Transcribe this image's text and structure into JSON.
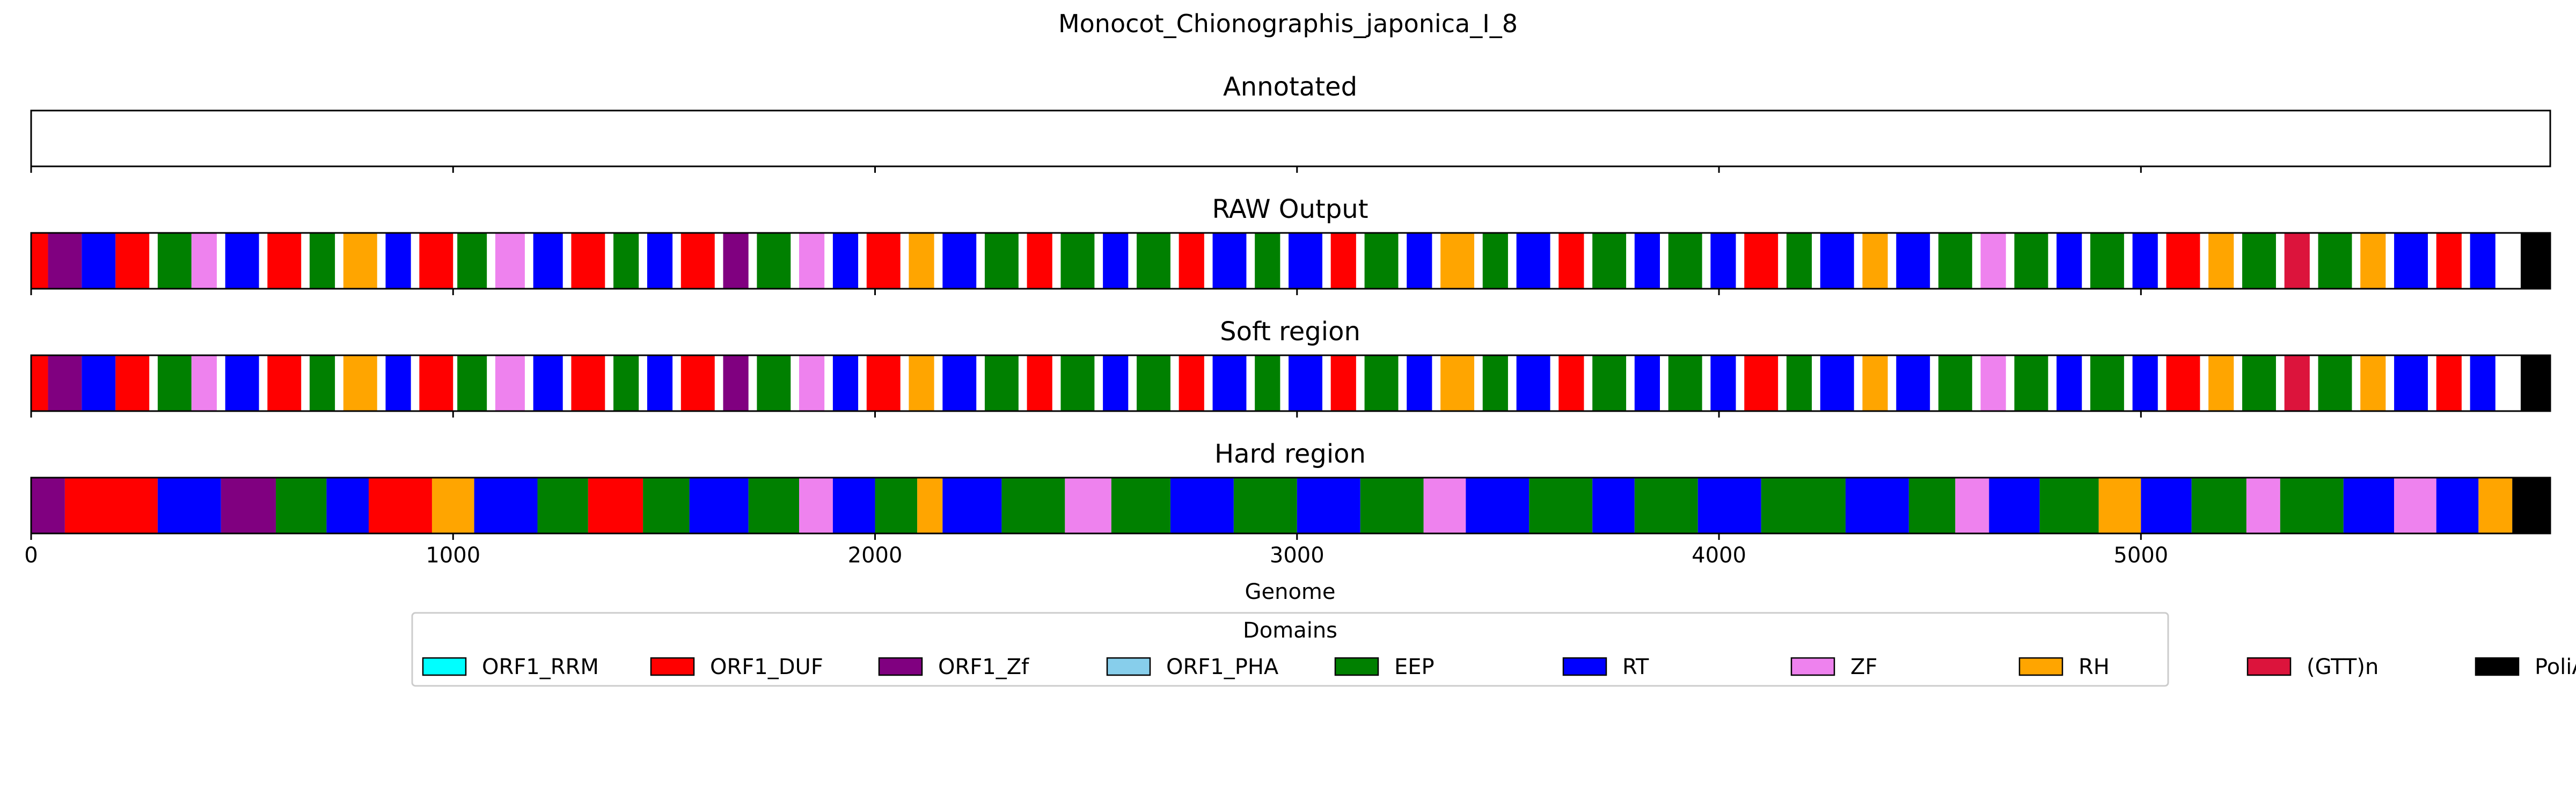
{
  "chart_data": {
    "type": "genome_track",
    "title": "Monocot_Chionographis_japonica_I_8",
    "xlabel": "Genome",
    "xlim": [
      0,
      5970
    ],
    "xticks": [
      0,
      1000,
      2000,
      3000,
      4000,
      5000
    ],
    "xtick_labels": [
      "0",
      "1000",
      "2000",
      "3000",
      "4000",
      "5000"
    ],
    "legend": {
      "title": "Domains",
      "placement": "below-center",
      "entries": [
        {
          "name": "ORF1_RRM",
          "color": "#00ffff"
        },
        {
          "name": "ORF1_DUF",
          "color": "#ff0000"
        },
        {
          "name": "ORF1_Zf",
          "color": "#800080"
        },
        {
          "name": "ORF1_PHA",
          "color": "#87ceeb"
        },
        {
          "name": "EEP",
          "color": "#008000"
        },
        {
          "name": "RT",
          "color": "#0000ff"
        },
        {
          "name": "ZF",
          "color": "#ee82ee"
        },
        {
          "name": "RH",
          "color": "#ffa500"
        },
        {
          "name": "(GTT)n",
          "color": "#dc143c"
        },
        {
          "name": "PoliA",
          "color": "#000000"
        }
      ]
    },
    "tracks": [
      {
        "name": "Annotated",
        "segments": []
      },
      {
        "name": "RAW Output",
        "segments": [
          [
            0,
            40,
            "ORF1_DUF"
          ],
          [
            40,
            120,
            "ORF1_Zf"
          ],
          [
            120,
            200,
            "RT"
          ],
          [
            200,
            280,
            "ORF1_DUF"
          ],
          [
            300,
            380,
            "EEP"
          ],
          [
            380,
            440,
            "ZF"
          ],
          [
            460,
            540,
            "RT"
          ],
          [
            560,
            640,
            "ORF1_DUF"
          ],
          [
            660,
            720,
            "EEP"
          ],
          [
            740,
            820,
            "RH"
          ],
          [
            840,
            900,
            "RT"
          ],
          [
            920,
            1000,
            "ORF1_DUF"
          ],
          [
            1010,
            1080,
            "EEP"
          ],
          [
            1100,
            1170,
            "ZF"
          ],
          [
            1190,
            1260,
            "RT"
          ],
          [
            1280,
            1360,
            "ORF1_DUF"
          ],
          [
            1380,
            1440,
            "EEP"
          ],
          [
            1460,
            1520,
            "RT"
          ],
          [
            1540,
            1620,
            "ORF1_DUF"
          ],
          [
            1640,
            1700,
            "ORF1_Zf"
          ],
          [
            1720,
            1800,
            "EEP"
          ],
          [
            1820,
            1880,
            "ZF"
          ],
          [
            1900,
            1960,
            "RT"
          ],
          [
            1980,
            2060,
            "ORF1_DUF"
          ],
          [
            2080,
            2140,
            "RH"
          ],
          [
            2160,
            2240,
            "RT"
          ],
          [
            2260,
            2340,
            "EEP"
          ],
          [
            2360,
            2420,
            "ORF1_DUF"
          ],
          [
            2440,
            2520,
            "EEP"
          ],
          [
            2540,
            2600,
            "RT"
          ],
          [
            2620,
            2700,
            "EEP"
          ],
          [
            2720,
            2780,
            "ORF1_DUF"
          ],
          [
            2800,
            2880,
            "RT"
          ],
          [
            2900,
            2960,
            "EEP"
          ],
          [
            2980,
            3060,
            "RT"
          ],
          [
            3080,
            3140,
            "ORF1_DUF"
          ],
          [
            3160,
            3240,
            "EEP"
          ],
          [
            3260,
            3320,
            "RT"
          ],
          [
            3340,
            3420,
            "RH"
          ],
          [
            3440,
            3500,
            "EEP"
          ],
          [
            3520,
            3600,
            "RT"
          ],
          [
            3620,
            3680,
            "ORF1_DUF"
          ],
          [
            3700,
            3780,
            "EEP"
          ],
          [
            3800,
            3860,
            "RT"
          ],
          [
            3880,
            3960,
            "EEP"
          ],
          [
            3980,
            4040,
            "RT"
          ],
          [
            4060,
            4140,
            "ORF1_DUF"
          ],
          [
            4160,
            4220,
            "EEP"
          ],
          [
            4240,
            4320,
            "RT"
          ],
          [
            4340,
            4400,
            "RH"
          ],
          [
            4420,
            4500,
            "RT"
          ],
          [
            4520,
            4600,
            "EEP"
          ],
          [
            4620,
            4680,
            "ZF"
          ],
          [
            4700,
            4780,
            "EEP"
          ],
          [
            4800,
            4860,
            "RT"
          ],
          [
            4880,
            4960,
            "EEP"
          ],
          [
            4980,
            5040,
            "RT"
          ],
          [
            5060,
            5140,
            "ORF1_DUF"
          ],
          [
            5160,
            5220,
            "RH"
          ],
          [
            5240,
            5320,
            "EEP"
          ],
          [
            5340,
            5400,
            "(GTT)n"
          ],
          [
            5420,
            5500,
            "EEP"
          ],
          [
            5520,
            5580,
            "RH"
          ],
          [
            5600,
            5680,
            "RT"
          ],
          [
            5700,
            5760,
            "ORF1_DUF"
          ],
          [
            5780,
            5840,
            "RT"
          ],
          [
            5900,
            5970,
            "PoliA"
          ]
        ]
      },
      {
        "name": "Soft region",
        "segments": [
          [
            0,
            40,
            "ORF1_DUF"
          ],
          [
            40,
            120,
            "ORF1_Zf"
          ],
          [
            120,
            200,
            "RT"
          ],
          [
            200,
            280,
            "ORF1_DUF"
          ],
          [
            300,
            380,
            "EEP"
          ],
          [
            380,
            440,
            "ZF"
          ],
          [
            460,
            540,
            "RT"
          ],
          [
            560,
            640,
            "ORF1_DUF"
          ],
          [
            660,
            720,
            "EEP"
          ],
          [
            740,
            820,
            "RH"
          ],
          [
            840,
            900,
            "RT"
          ],
          [
            920,
            1000,
            "ORF1_DUF"
          ],
          [
            1010,
            1080,
            "EEP"
          ],
          [
            1100,
            1170,
            "ZF"
          ],
          [
            1190,
            1260,
            "RT"
          ],
          [
            1280,
            1360,
            "ORF1_DUF"
          ],
          [
            1380,
            1440,
            "EEP"
          ],
          [
            1460,
            1520,
            "RT"
          ],
          [
            1540,
            1620,
            "ORF1_DUF"
          ],
          [
            1640,
            1700,
            "ORF1_Zf"
          ],
          [
            1720,
            1800,
            "EEP"
          ],
          [
            1820,
            1880,
            "ZF"
          ],
          [
            1900,
            1960,
            "RT"
          ],
          [
            1980,
            2060,
            "ORF1_DUF"
          ],
          [
            2080,
            2140,
            "RH"
          ],
          [
            2160,
            2240,
            "RT"
          ],
          [
            2260,
            2340,
            "EEP"
          ],
          [
            2360,
            2420,
            "ORF1_DUF"
          ],
          [
            2440,
            2520,
            "EEP"
          ],
          [
            2540,
            2600,
            "RT"
          ],
          [
            2620,
            2700,
            "EEP"
          ],
          [
            2720,
            2780,
            "ORF1_DUF"
          ],
          [
            2800,
            2880,
            "RT"
          ],
          [
            2900,
            2960,
            "EEP"
          ],
          [
            2980,
            3060,
            "RT"
          ],
          [
            3080,
            3140,
            "ORF1_DUF"
          ],
          [
            3160,
            3240,
            "EEP"
          ],
          [
            3260,
            3320,
            "RT"
          ],
          [
            3340,
            3420,
            "RH"
          ],
          [
            3440,
            3500,
            "EEP"
          ],
          [
            3520,
            3600,
            "RT"
          ],
          [
            3620,
            3680,
            "ORF1_DUF"
          ],
          [
            3700,
            3780,
            "EEP"
          ],
          [
            3800,
            3860,
            "RT"
          ],
          [
            3880,
            3960,
            "EEP"
          ],
          [
            3980,
            4040,
            "RT"
          ],
          [
            4060,
            4140,
            "ORF1_DUF"
          ],
          [
            4160,
            4220,
            "EEP"
          ],
          [
            4240,
            4320,
            "RT"
          ],
          [
            4340,
            4400,
            "RH"
          ],
          [
            4420,
            4500,
            "RT"
          ],
          [
            4520,
            4600,
            "EEP"
          ],
          [
            4620,
            4680,
            "ZF"
          ],
          [
            4700,
            4780,
            "EEP"
          ],
          [
            4800,
            4860,
            "RT"
          ],
          [
            4880,
            4960,
            "EEP"
          ],
          [
            4980,
            5040,
            "RT"
          ],
          [
            5060,
            5140,
            "ORF1_DUF"
          ],
          [
            5160,
            5220,
            "RH"
          ],
          [
            5240,
            5320,
            "EEP"
          ],
          [
            5340,
            5400,
            "(GTT)n"
          ],
          [
            5420,
            5500,
            "EEP"
          ],
          [
            5520,
            5580,
            "RH"
          ],
          [
            5600,
            5680,
            "RT"
          ],
          [
            5700,
            5760,
            "ORF1_DUF"
          ],
          [
            5780,
            5840,
            "RT"
          ],
          [
            5900,
            5970,
            "PoliA"
          ]
        ]
      },
      {
        "name": "Hard region",
        "segments": [
          [
            0,
            80,
            "ORF1_Zf"
          ],
          [
            80,
            300,
            "ORF1_DUF"
          ],
          [
            300,
            450,
            "RT"
          ],
          [
            450,
            580,
            "ORF1_Zf"
          ],
          [
            580,
            700,
            "EEP"
          ],
          [
            700,
            800,
            "RT"
          ],
          [
            800,
            950,
            "ORF1_DUF"
          ],
          [
            950,
            1050,
            "RH"
          ],
          [
            1050,
            1200,
            "RT"
          ],
          [
            1200,
            1320,
            "EEP"
          ],
          [
            1320,
            1450,
            "ORF1_DUF"
          ],
          [
            1450,
            1560,
            "EEP"
          ],
          [
            1560,
            1700,
            "RT"
          ],
          [
            1700,
            1820,
            "EEP"
          ],
          [
            1820,
            1900,
            "ZF"
          ],
          [
            1900,
            2000,
            "RT"
          ],
          [
            2000,
            2100,
            "EEP"
          ],
          [
            2100,
            2160,
            "RH"
          ],
          [
            2160,
            2300,
            "RT"
          ],
          [
            2300,
            2450,
            "EEP"
          ],
          [
            2450,
            2560,
            "ZF"
          ],
          [
            2560,
            2700,
            "EEP"
          ],
          [
            2700,
            2850,
            "RT"
          ],
          [
            2850,
            3000,
            "EEP"
          ],
          [
            3000,
            3150,
            "RT"
          ],
          [
            3150,
            3300,
            "EEP"
          ],
          [
            3300,
            3400,
            "ZF"
          ],
          [
            3400,
            3550,
            "RT"
          ],
          [
            3550,
            3700,
            "EEP"
          ],
          [
            3700,
            3800,
            "RT"
          ],
          [
            3800,
            3950,
            "EEP"
          ],
          [
            3950,
            4100,
            "RT"
          ],
          [
            4100,
            4300,
            "EEP"
          ],
          [
            4300,
            4450,
            "RT"
          ],
          [
            4450,
            4560,
            "EEP"
          ],
          [
            4560,
            4640,
            "ZF"
          ],
          [
            4640,
            4760,
            "RT"
          ],
          [
            4760,
            4900,
            "EEP"
          ],
          [
            4900,
            5000,
            "RH"
          ],
          [
            5000,
            5120,
            "RT"
          ],
          [
            5120,
            5250,
            "EEP"
          ],
          [
            5250,
            5330,
            "ZF"
          ],
          [
            5330,
            5480,
            "EEP"
          ],
          [
            5480,
            5600,
            "RT"
          ],
          [
            5600,
            5700,
            "ZF"
          ],
          [
            5700,
            5800,
            "RT"
          ],
          [
            5800,
            5880,
            "RH"
          ],
          [
            5880,
            5970,
            "PoliA"
          ]
        ]
      }
    ]
  }
}
